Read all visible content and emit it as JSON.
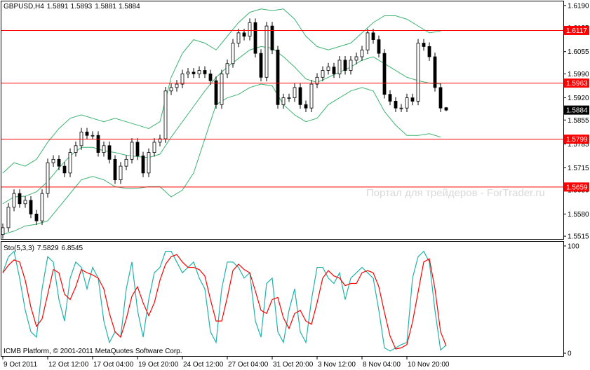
{
  "chart_data": [
    {
      "type": "candlestick",
      "symbol": "GBPUSD,H4",
      "categories": [
        "9 Oct 2011",
        null,
        null,
        null,
        null,
        null,
        null,
        null,
        "12 Oct 12:00",
        null,
        null,
        null,
        null,
        null,
        null,
        null,
        "17 Oct 04:00",
        null,
        null,
        null,
        null,
        null,
        null,
        null,
        "19 Oct 20:00",
        null,
        null,
        null,
        null,
        null,
        null,
        null,
        "24 Oct 12:00",
        null,
        null,
        null,
        null,
        null,
        null,
        null,
        "27 Oct 04:00",
        null,
        null,
        null,
        null,
        null,
        null,
        null,
        "31 Oct 20:00",
        null,
        null,
        null,
        null,
        null,
        null,
        null,
        "3 Nov 12:00",
        null,
        null,
        null,
        null,
        null,
        null,
        null,
        "8 Nov 04:00",
        null,
        null,
        null,
        null,
        null,
        null,
        null,
        "10 Nov 20:00",
        null,
        null,
        null,
        null,
        null,
        null,
        null
      ],
      "open": [
        1.552,
        1.554,
        1.56,
        1.564,
        1.561,
        1.562,
        1.558,
        1.556,
        1.564,
        1.573,
        1.574,
        1.572,
        1.57,
        1.576,
        1.578,
        1.582,
        1.581,
        1.581,
        1.576,
        1.578,
        1.574,
        1.568,
        1.572,
        1.574,
        1.579,
        1.575,
        1.57,
        1.576,
        1.579,
        1.58,
        1.594,
        1.595,
        1.596,
        1.599,
        1.5995,
        1.599,
        1.6,
        1.599,
        1.597,
        1.59,
        1.599,
        1.602,
        1.608,
        1.611,
        1.61,
        1.614,
        1.605,
        1.598,
        1.613,
        1.606,
        1.59,
        1.592,
        1.592,
        1.595,
        1.59,
        1.589,
        1.596,
        1.598,
        1.6,
        1.601,
        1.599,
        1.603,
        1.6,
        1.603,
        1.604,
        1.606,
        1.611,
        1.609,
        1.605,
        1.593,
        1.591,
        1.589,
        1.589,
        1.592,
        1.591,
        1.608,
        1.607,
        1.604,
        1.595,
        1.5891
      ],
      "high": [
        1.5552,
        1.5612,
        1.5652,
        1.5652,
        1.5632,
        1.5632,
        1.5592,
        1.5652,
        1.5742,
        1.5752,
        1.5752,
        1.5732,
        1.5772,
        1.5792,
        1.5832,
        1.5832,
        1.5822,
        1.5822,
        1.5792,
        1.5792,
        1.5752,
        1.5732,
        1.5752,
        1.5802,
        1.5802,
        1.5762,
        1.5772,
        1.5802,
        1.5812,
        1.5952,
        1.5962,
        1.5972,
        1.6002,
        1.6007,
        1.6007,
        1.6012,
        1.6012,
        1.6002,
        1.5982,
        1.6002,
        1.6032,
        1.6092,
        1.6122,
        1.6122,
        1.6152,
        1.6152,
        1.6062,
        1.6142,
        1.6142,
        1.6072,
        1.5932,
        1.5932,
        1.5962,
        1.5962,
        1.5912,
        1.5972,
        1.5992,
        1.6012,
        1.6022,
        1.6022,
        1.6042,
        1.6042,
        1.6042,
        1.6052,
        1.6072,
        1.6122,
        1.6122,
        1.6102,
        1.6062,
        1.5942,
        1.5922,
        1.5902,
        1.5932,
        1.5932,
        1.6092,
        1.6092,
        1.6082,
        1.6052,
        1.5962,
        1.5893
      ],
      "low": [
        1.5508,
        1.5528,
        1.5588,
        1.5598,
        1.5598,
        1.5568,
        1.5548,
        1.5548,
        1.5628,
        1.5718,
        1.5708,
        1.5688,
        1.5688,
        1.5748,
        1.5768,
        1.5798,
        1.5798,
        1.5748,
        1.5748,
        1.5728,
        1.5668,
        1.5668,
        1.5708,
        1.5728,
        1.5738,
        1.5688,
        1.5688,
        1.5748,
        1.5778,
        1.5788,
        1.5928,
        1.5938,
        1.5948,
        1.5978,
        1.5978,
        1.5978,
        1.5978,
        1.5958,
        1.5888,
        1.5888,
        1.5978,
        1.6008,
        1.6068,
        1.6088,
        1.6088,
        1.6038,
        1.5968,
        1.5968,
        1.6048,
        1.5888,
        1.5888,
        1.5908,
        1.5908,
        1.5888,
        1.5878,
        1.5878,
        1.5948,
        1.5968,
        1.5988,
        1.5978,
        1.5978,
        1.5988,
        1.5988,
        1.6018,
        1.6028,
        1.6048,
        1.6078,
        1.6038,
        1.5918,
        1.5898,
        1.5878,
        1.5878,
        1.5878,
        1.5898,
        1.5898,
        1.6058,
        1.6028,
        1.5938,
        1.5878,
        1.5881
      ],
      "close": [
        1.554,
        1.56,
        1.564,
        1.561,
        1.562,
        1.558,
        1.556,
        1.564,
        1.573,
        1.574,
        1.572,
        1.57,
        1.576,
        1.578,
        1.582,
        1.581,
        1.581,
        1.576,
        1.578,
        1.574,
        1.568,
        1.572,
        1.574,
        1.579,
        1.575,
        1.57,
        1.576,
        1.579,
        1.58,
        1.594,
        1.595,
        1.596,
        1.599,
        1.5995,
        1.599,
        1.6,
        1.599,
        1.597,
        1.59,
        1.599,
        1.602,
        1.608,
        1.611,
        1.61,
        1.614,
        1.605,
        1.598,
        1.613,
        1.606,
        1.59,
        1.592,
        1.592,
        1.595,
        1.59,
        1.589,
        1.596,
        1.598,
        1.6,
        1.601,
        1.599,
        1.603,
        1.6,
        1.603,
        1.604,
        1.606,
        1.611,
        1.609,
        1.605,
        1.593,
        1.591,
        1.589,
        1.589,
        1.592,
        1.591,
        1.608,
        1.607,
        1.604,
        1.595,
        1.589,
        1.5884
      ],
      "up_color": "#ffffff",
      "down_color": "#000000",
      "ylim": [
        1.5507,
        1.6202
      ],
      "yticks": [
        {
          "value": 1.619,
          "label": "1.6190"
        },
        1.6125,
        1.6055,
        {
          "value": 1.599,
          "label": "1.5990"
        },
        {
          "value": 1.592,
          "label": "1.5920"
        },
        1.5855,
        1.5785,
        1.5715,
        {
          "value": 1.565,
          "label": "1.5650"
        },
        {
          "value": 1.558,
          "label": "1.5580"
        },
        1.5515
      ],
      "levels": [
        1.6117,
        1.5963,
        1.5799,
        1.5659
      ],
      "levels_color": "#ff0000",
      "bands": {
        "x": [
          0,
          2,
          4,
          6,
          8,
          10,
          12,
          14,
          16,
          18,
          20,
          22,
          24,
          26,
          28,
          30,
          32,
          34,
          36,
          38,
          40,
          42,
          44,
          46,
          48,
          50,
          52,
          54,
          56,
          58,
          60,
          62,
          64,
          66,
          68,
          70,
          72,
          74,
          76,
          78
        ],
        "series": [
          {
            "color": "#3cb371",
            "values": [
              1.57,
              1.573,
              1.572,
              1.574,
              1.579,
              1.583,
              1.586,
              1.587,
              1.586,
              1.585,
              1.586,
              1.585,
              1.584,
              1.583,
              1.585,
              1.598,
              1.605,
              1.609,
              1.608,
              1.606,
              1.61,
              1.614,
              1.617,
              1.618,
              1.6175,
              1.618,
              1.615,
              1.61,
              1.607,
              1.606,
              1.607,
              1.608,
              1.611,
              1.614,
              1.616,
              1.616,
              1.615,
              1.613,
              1.611,
              1.6115
            ]
          },
          {
            "color": "#3cb371",
            "values": [
              1.561,
              1.563,
              1.5632,
              1.5645,
              1.5675,
              1.5715,
              1.575,
              1.5775,
              1.5775,
              1.5765,
              1.576,
              1.5752,
              1.5748,
              1.5745,
              1.5755,
              1.5805,
              1.585,
              1.5895,
              1.594,
              1.598,
              1.601,
              1.6035,
              1.606,
              1.607,
              1.6065,
              1.604,
              1.601,
              1.5975,
              1.5965,
              1.598,
              1.5995,
              1.601,
              1.603,
              1.604,
              1.602,
              1.6,
              1.598,
              1.597,
              1.5963,
              1.596
            ]
          },
          {
            "color": "#3cb371",
            "values": [
              1.552,
              1.553,
              1.5545,
              1.555,
              1.556,
              1.56,
              1.564,
              1.568,
              1.569,
              1.568,
              1.566,
              1.5655,
              1.5655,
              1.566,
              1.566,
              1.563,
              1.565,
              1.57,
              1.58,
              1.59,
              1.592,
              1.593,
              1.595,
              1.596,
              1.5955,
              1.59,
              1.587,
              1.585,
              1.586,
              1.59,
              1.592,
              1.594,
              1.595,
              1.594,
              1.588,
              1.584,
              1.581,
              1.581,
              1.5815,
              1.5805
            ]
          }
        ]
      }
    },
    {
      "type": "line",
      "title": "Sto(5,3,3)",
      "series": [
        {
          "color": "#20b2aa",
          "values": [
            75,
            90,
            95,
            70,
            40,
            20,
            15,
            60,
            90,
            85,
            50,
            30,
            70,
            85,
            80,
            60,
            80,
            70,
            30,
            10,
            20,
            15,
            60,
            85,
            40,
            15,
            50,
            75,
            80,
            95,
            95,
            85,
            75,
            80,
            85,
            70,
            60,
            20,
            10,
            60,
            85,
            85,
            80,
            70,
            75,
            30,
            15,
            65,
            70,
            20,
            10,
            40,
            60,
            20,
            10,
            50,
            80,
            80,
            70,
            65,
            75,
            50,
            70,
            75,
            80,
            75,
            70,
            40,
            5,
            2,
            5,
            8,
            10,
            70,
            90,
            95,
            85,
            40,
            3,
            7.5829
          ]
        },
        {
          "color": "#ff0000",
          "values": [
            75,
            82,
            87,
            85,
            68,
            43,
            25,
            32,
            55,
            78,
            75,
            55,
            50,
            62,
            78,
            75,
            73,
            70,
            60,
            37,
            20,
            15,
            32,
            53,
            62,
            47,
            35,
            47,
            68,
            83,
            90,
            92,
            85,
            80,
            80,
            78,
            72,
            50,
            30,
            30,
            52,
            77,
            83,
            78,
            75,
            58,
            40,
            37,
            50,
            52,
            33,
            23,
            37,
            40,
            30,
            27,
            47,
            70,
            77,
            72,
            70,
            63,
            65,
            65,
            75,
            77,
            75,
            62,
            38,
            16,
            4,
            5,
            8,
            29,
            57,
            85,
            88,
            60,
            20,
            6.8545
          ]
        }
      ],
      "ylim": [
        -2.6,
        103.9
      ],
      "yticks": [
        0,
        100
      ]
    }
  ],
  "watermark": "Портал для трейдеров - ForTrader.ru",
  "copyright": "ICMB Platform, © 2001-2011 MetaQuotes Software Corp."
}
